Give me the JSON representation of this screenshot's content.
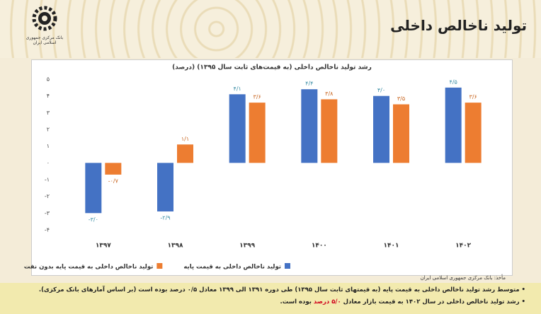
{
  "header": {
    "title": "تولید ناخالص داخلی",
    "logo_text": "بانک مرکزی جمهوری اسلامی ایران"
  },
  "chart_data": {
    "type": "bar",
    "title": "رشد تولید ناخالص داخلی (به قیمت‌های ثابت سال ۱۳۹۵) (درصد)",
    "categories": [
      "۱۳۹۷",
      "۱۳۹۸",
      "۱۳۹۹",
      "۱۴۰۰",
      "۱۴۰۱",
      "۱۴۰۲"
    ],
    "series": [
      {
        "name": "تولید ناخالص داخلی به قیمت پایه",
        "color": "#4472c4",
        "values": [
          -3.0,
          -2.9,
          4.1,
          4.4,
          4.0,
          4.5
        ],
        "value_labels": [
          "-۳/۰",
          "-۲/۹",
          "۴/۱",
          "۴/۴",
          "۴/۰",
          "۴/۵"
        ]
      },
      {
        "name": "تولید ناخالص داخلی به قیمت پایه بدون نفت",
        "color": "#ed7d31",
        "values": [
          -0.7,
          1.1,
          3.6,
          3.8,
          3.5,
          3.6
        ],
        "value_labels": [
          "-۰/۷",
          "۱/۱",
          "۳/۶",
          "۳/۸",
          "۳/۵",
          "۳/۶"
        ]
      }
    ],
    "ylim": [
      -4,
      5
    ],
    "yticks": [
      {
        "value": -4,
        "label": "-۴"
      },
      {
        "value": -3,
        "label": "-۳"
      },
      {
        "value": -2,
        "label": "-۲"
      },
      {
        "value": -1,
        "label": "-۱"
      },
      {
        "value": 0,
        "label": "۰"
      },
      {
        "value": 1,
        "label": "۱"
      },
      {
        "value": 2,
        "label": "۲"
      },
      {
        "value": 3,
        "label": "۳"
      },
      {
        "value": 4,
        "label": "۴"
      },
      {
        "value": 5,
        "label": "۵"
      }
    ],
    "grid": false,
    "legend": "bottom"
  },
  "source": "مأخذ: بانک مرکزی جمهوری اسلامی ایران",
  "notes": [
    {
      "text": "متوسط رشد تولید ناخالص داخلی به قیمت پایه (به قیمتهای ثابت سال ۱۳۹۵) طی دوره ۱۳۹۱ الی ۱۳۹۹ معادل ۰/۵ درصد بوده است (بر اساس آمارهای بانک مرکزی)."
    },
    {
      "before": "رشد تولید ناخالص داخلی در سال ۱۴۰۲ به قیمت بازار معادل",
      "highlight": "۵/۰ درصد",
      "after": "بوده است."
    }
  ]
}
